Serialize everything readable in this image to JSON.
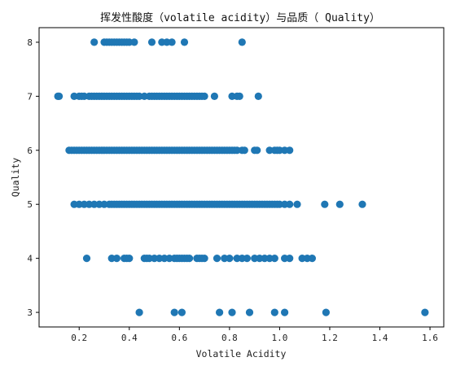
{
  "chart_data": {
    "type": "scatter",
    "title": "挥发性酸度（volatile acidity）与品质（ Quality）",
    "xlabel": "Volatile Acidity",
    "ylabel": "Quality",
    "xlim": [
      0.04,
      1.655
    ],
    "ylim": [
      2.73,
      8.27
    ],
    "x_ticks": [
      0.2,
      0.4,
      0.6,
      0.8,
      1.0,
      1.2,
      1.4,
      1.6
    ],
    "x_tick_labels": [
      "0.2",
      "0.4",
      "0.6",
      "0.8",
      "1.0",
      "1.2",
      "1.4",
      "1.6"
    ],
    "y_ticks": [
      3,
      4,
      5,
      6,
      7,
      8
    ],
    "y_tick_labels": [
      "3",
      "4",
      "5",
      "6",
      "7",
      "8"
    ],
    "grid": false,
    "marker_color": "#1f77b4",
    "series": [
      {
        "points": [
          [
            0.26,
            8
          ],
          [
            0.3,
            8
          ],
          [
            0.31,
            8
          ],
          [
            0.32,
            8
          ],
          [
            0.33,
            8
          ],
          [
            0.34,
            8
          ],
          [
            0.35,
            8
          ],
          [
            0.36,
            8
          ],
          [
            0.37,
            8
          ],
          [
            0.38,
            8
          ],
          [
            0.39,
            8
          ],
          [
            0.4,
            8
          ],
          [
            0.42,
            8
          ],
          [
            0.49,
            8
          ],
          [
            0.53,
            8
          ],
          [
            0.55,
            8
          ],
          [
            0.57,
            8
          ],
          [
            0.62,
            8
          ],
          [
            0.85,
            8
          ],
          [
            0.115,
            7
          ],
          [
            0.12,
            7
          ],
          [
            0.18,
            7
          ],
          [
            0.2,
            7
          ],
          [
            0.21,
            7
          ],
          [
            0.22,
            7
          ],
          [
            0.24,
            7
          ],
          [
            0.25,
            7
          ],
          [
            0.26,
            7
          ],
          [
            0.27,
            7
          ],
          [
            0.28,
            7
          ],
          [
            0.29,
            7
          ],
          [
            0.3,
            7
          ],
          [
            0.31,
            7
          ],
          [
            0.32,
            7
          ],
          [
            0.33,
            7
          ],
          [
            0.34,
            7
          ],
          [
            0.35,
            7
          ],
          [
            0.36,
            7
          ],
          [
            0.37,
            7
          ],
          [
            0.38,
            7
          ],
          [
            0.39,
            7
          ],
          [
            0.4,
            7
          ],
          [
            0.41,
            7
          ],
          [
            0.42,
            7
          ],
          [
            0.43,
            7
          ],
          [
            0.44,
            7
          ],
          [
            0.46,
            7
          ],
          [
            0.48,
            7
          ],
          [
            0.49,
            7
          ],
          [
            0.5,
            7
          ],
          [
            0.51,
            7
          ],
          [
            0.52,
            7
          ],
          [
            0.53,
            7
          ],
          [
            0.54,
            7
          ],
          [
            0.55,
            7
          ],
          [
            0.56,
            7
          ],
          [
            0.57,
            7
          ],
          [
            0.58,
            7
          ],
          [
            0.59,
            7
          ],
          [
            0.6,
            7
          ],
          [
            0.61,
            7
          ],
          [
            0.62,
            7
          ],
          [
            0.63,
            7
          ],
          [
            0.64,
            7
          ],
          [
            0.65,
            7
          ],
          [
            0.66,
            7
          ],
          [
            0.67,
            7
          ],
          [
            0.68,
            7
          ],
          [
            0.69,
            7
          ],
          [
            0.7,
            7
          ],
          [
            0.74,
            7
          ],
          [
            0.81,
            7
          ],
          [
            0.83,
            7
          ],
          [
            0.84,
            7
          ],
          [
            0.915,
            7
          ],
          [
            0.16,
            6
          ],
          [
            0.17,
            6
          ],
          [
            0.18,
            6
          ],
          [
            0.19,
            6
          ],
          [
            0.2,
            6
          ],
          [
            0.21,
            6
          ],
          [
            0.22,
            6
          ],
          [
            0.23,
            6
          ],
          [
            0.24,
            6
          ],
          [
            0.25,
            6
          ],
          [
            0.26,
            6
          ],
          [
            0.27,
            6
          ],
          [
            0.28,
            6
          ],
          [
            0.29,
            6
          ],
          [
            0.3,
            6
          ],
          [
            0.31,
            6
          ],
          [
            0.32,
            6
          ],
          [
            0.33,
            6
          ],
          [
            0.34,
            6
          ],
          [
            0.35,
            6
          ],
          [
            0.36,
            6
          ],
          [
            0.37,
            6
          ],
          [
            0.38,
            6
          ],
          [
            0.39,
            6
          ],
          [
            0.4,
            6
          ],
          [
            0.41,
            6
          ],
          [
            0.42,
            6
          ],
          [
            0.43,
            6
          ],
          [
            0.44,
            6
          ],
          [
            0.45,
            6
          ],
          [
            0.46,
            6
          ],
          [
            0.47,
            6
          ],
          [
            0.48,
            6
          ],
          [
            0.49,
            6
          ],
          [
            0.5,
            6
          ],
          [
            0.51,
            6
          ],
          [
            0.52,
            6
          ],
          [
            0.53,
            6
          ],
          [
            0.54,
            6
          ],
          [
            0.55,
            6
          ],
          [
            0.56,
            6
          ],
          [
            0.57,
            6
          ],
          [
            0.58,
            6
          ],
          [
            0.59,
            6
          ],
          [
            0.6,
            6
          ],
          [
            0.61,
            6
          ],
          [
            0.62,
            6
          ],
          [
            0.63,
            6
          ],
          [
            0.64,
            6
          ],
          [
            0.65,
            6
          ],
          [
            0.66,
            6
          ],
          [
            0.67,
            6
          ],
          [
            0.68,
            6
          ],
          [
            0.69,
            6
          ],
          [
            0.7,
            6
          ],
          [
            0.71,
            6
          ],
          [
            0.72,
            6
          ],
          [
            0.73,
            6
          ],
          [
            0.74,
            6
          ],
          [
            0.75,
            6
          ],
          [
            0.76,
            6
          ],
          [
            0.77,
            6
          ],
          [
            0.78,
            6
          ],
          [
            0.79,
            6
          ],
          [
            0.8,
            6
          ],
          [
            0.81,
            6
          ],
          [
            0.82,
            6
          ],
          [
            0.83,
            6
          ],
          [
            0.85,
            6
          ],
          [
            0.86,
            6
          ],
          [
            0.9,
            6
          ],
          [
            0.91,
            6
          ],
          [
            0.96,
            6
          ],
          [
            0.98,
            6
          ],
          [
            0.99,
            6
          ],
          [
            1.0,
            6
          ],
          [
            1.02,
            6
          ],
          [
            1.04,
            6
          ],
          [
            0.18,
            5
          ],
          [
            0.2,
            5
          ],
          [
            0.22,
            5
          ],
          [
            0.24,
            5
          ],
          [
            0.26,
            5
          ],
          [
            0.28,
            5
          ],
          [
            0.3,
            5
          ],
          [
            0.32,
            5
          ],
          [
            0.33,
            5
          ],
          [
            0.34,
            5
          ],
          [
            0.35,
            5
          ],
          [
            0.36,
            5
          ],
          [
            0.37,
            5
          ],
          [
            0.38,
            5
          ],
          [
            0.39,
            5
          ],
          [
            0.4,
            5
          ],
          [
            0.41,
            5
          ],
          [
            0.42,
            5
          ],
          [
            0.43,
            5
          ],
          [
            0.44,
            5
          ],
          [
            0.45,
            5
          ],
          [
            0.46,
            5
          ],
          [
            0.47,
            5
          ],
          [
            0.48,
            5
          ],
          [
            0.49,
            5
          ],
          [
            0.5,
            5
          ],
          [
            0.51,
            5
          ],
          [
            0.52,
            5
          ],
          [
            0.53,
            5
          ],
          [
            0.54,
            5
          ],
          [
            0.55,
            5
          ],
          [
            0.56,
            5
          ],
          [
            0.57,
            5
          ],
          [
            0.58,
            5
          ],
          [
            0.59,
            5
          ],
          [
            0.6,
            5
          ],
          [
            0.61,
            5
          ],
          [
            0.62,
            5
          ],
          [
            0.63,
            5
          ],
          [
            0.64,
            5
          ],
          [
            0.65,
            5
          ],
          [
            0.66,
            5
          ],
          [
            0.67,
            5
          ],
          [
            0.68,
            5
          ],
          [
            0.69,
            5
          ],
          [
            0.7,
            5
          ],
          [
            0.71,
            5
          ],
          [
            0.72,
            5
          ],
          [
            0.73,
            5
          ],
          [
            0.74,
            5
          ],
          [
            0.75,
            5
          ],
          [
            0.76,
            5
          ],
          [
            0.77,
            5
          ],
          [
            0.78,
            5
          ],
          [
            0.79,
            5
          ],
          [
            0.8,
            5
          ],
          [
            0.81,
            5
          ],
          [
            0.82,
            5
          ],
          [
            0.83,
            5
          ],
          [
            0.84,
            5
          ],
          [
            0.85,
            5
          ],
          [
            0.86,
            5
          ],
          [
            0.87,
            5
          ],
          [
            0.88,
            5
          ],
          [
            0.89,
            5
          ],
          [
            0.9,
            5
          ],
          [
            0.91,
            5
          ],
          [
            0.92,
            5
          ],
          [
            0.93,
            5
          ],
          [
            0.94,
            5
          ],
          [
            0.95,
            5
          ],
          [
            0.96,
            5
          ],
          [
            0.97,
            5
          ],
          [
            0.98,
            5
          ],
          [
            0.99,
            5
          ],
          [
            1.0,
            5
          ],
          [
            1.02,
            5
          ],
          [
            1.04,
            5
          ],
          [
            1.07,
            5
          ],
          [
            1.18,
            5
          ],
          [
            1.24,
            5
          ],
          [
            1.33,
            5
          ],
          [
            0.23,
            4
          ],
          [
            0.33,
            4
          ],
          [
            0.35,
            4
          ],
          [
            0.38,
            4
          ],
          [
            0.39,
            4
          ],
          [
            0.4,
            4
          ],
          [
            0.46,
            4
          ],
          [
            0.47,
            4
          ],
          [
            0.48,
            4
          ],
          [
            0.5,
            4
          ],
          [
            0.52,
            4
          ],
          [
            0.54,
            4
          ],
          [
            0.56,
            4
          ],
          [
            0.58,
            4
          ],
          [
            0.59,
            4
          ],
          [
            0.6,
            4
          ],
          [
            0.61,
            4
          ],
          [
            0.62,
            4
          ],
          [
            0.63,
            4
          ],
          [
            0.64,
            4
          ],
          [
            0.67,
            4
          ],
          [
            0.68,
            4
          ],
          [
            0.69,
            4
          ],
          [
            0.7,
            4
          ],
          [
            0.75,
            4
          ],
          [
            0.78,
            4
          ],
          [
            0.8,
            4
          ],
          [
            0.83,
            4
          ],
          [
            0.85,
            4
          ],
          [
            0.87,
            4
          ],
          [
            0.9,
            4
          ],
          [
            0.92,
            4
          ],
          [
            0.94,
            4
          ],
          [
            0.96,
            4
          ],
          [
            0.98,
            4
          ],
          [
            1.02,
            4
          ],
          [
            1.04,
            4
          ],
          [
            1.09,
            4
          ],
          [
            1.11,
            4
          ],
          [
            1.13,
            4
          ],
          [
            0.44,
            3
          ],
          [
            0.58,
            3
          ],
          [
            0.61,
            3
          ],
          [
            0.76,
            3
          ],
          [
            0.81,
            3
          ],
          [
            0.88,
            3
          ],
          [
            0.98,
            3
          ],
          [
            1.02,
            3
          ],
          [
            1.185,
            3
          ],
          [
            1.58,
            3
          ]
        ]
      }
    ]
  }
}
